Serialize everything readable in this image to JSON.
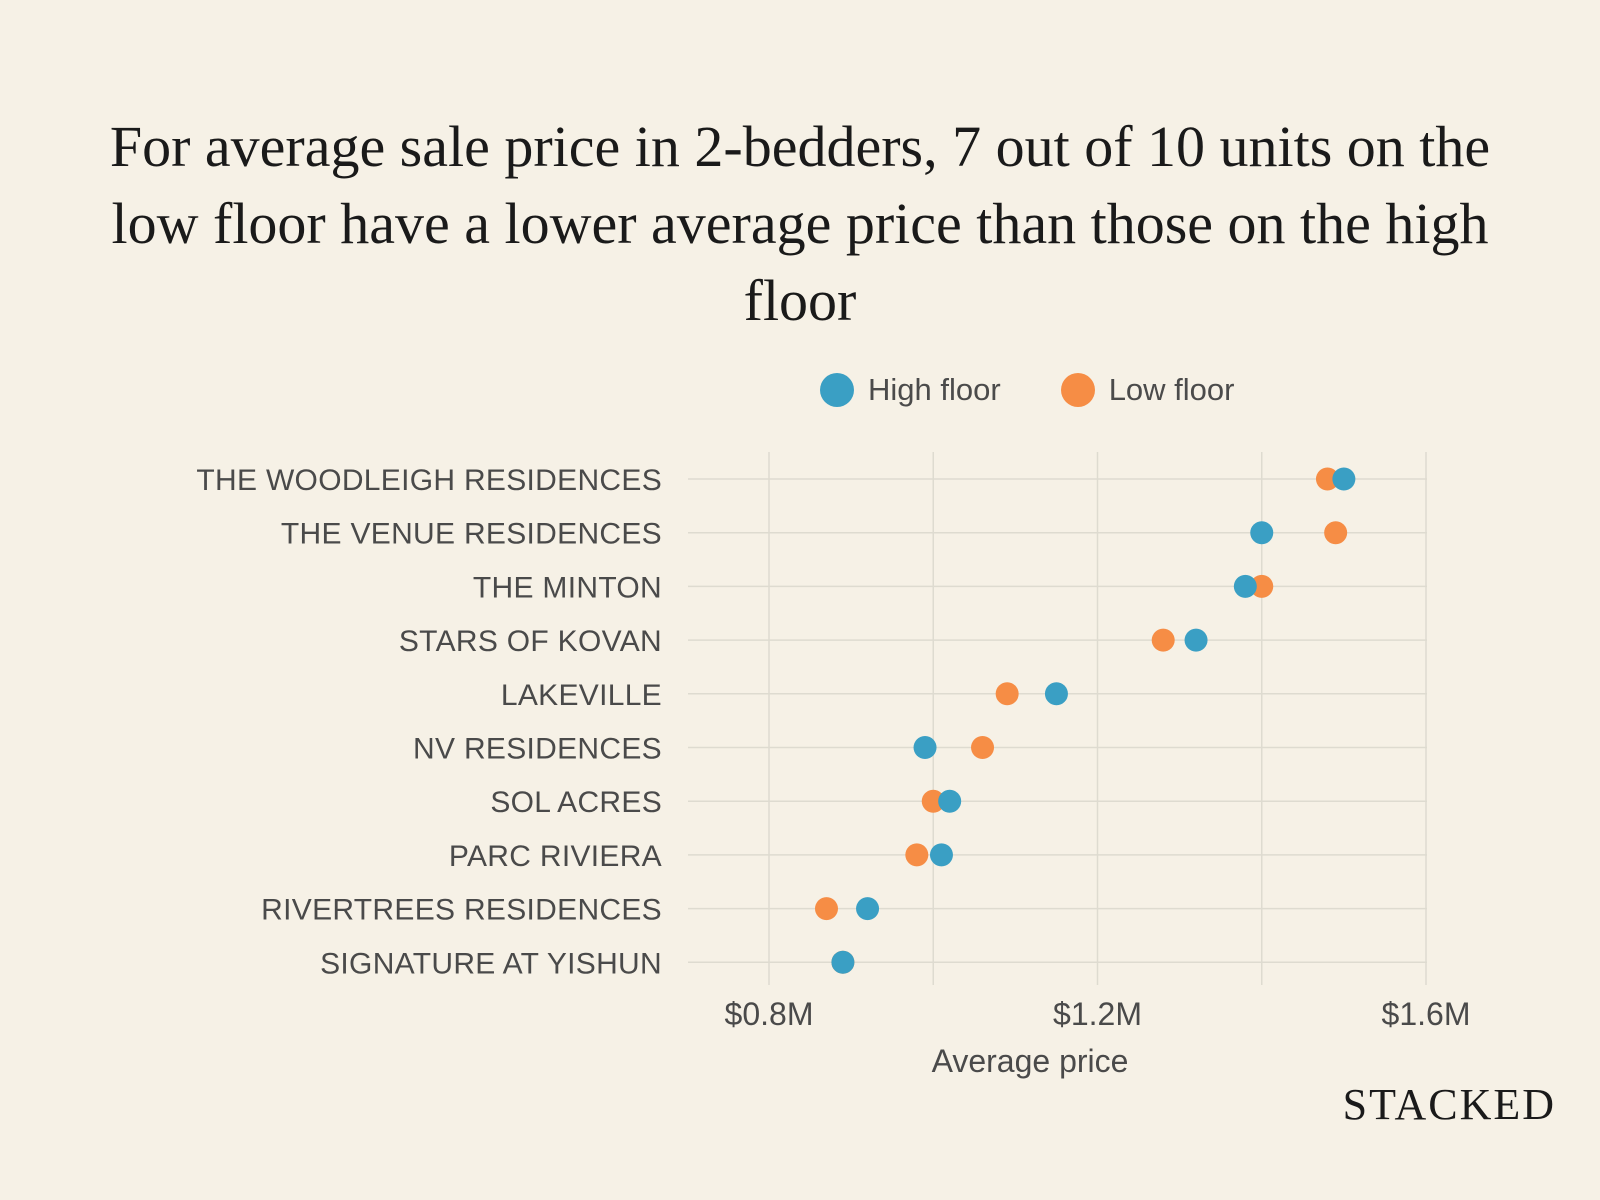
{
  "title": "For average sale price in 2-bedders, 7 out of 10 units on the low floor have a lower average price than those on the high floor",
  "brand": "STACKED",
  "colors": {
    "background": "#f6f1e6",
    "high": "#3a9fc4",
    "low": "#f68d45",
    "grid": "#dedbd0"
  },
  "legend": {
    "high_label": "High floor",
    "low_label": "Low floor"
  },
  "chart_data": {
    "type": "scatter",
    "title": "For average sale price in 2-bedders, 7 out of 10 units on the low floor have a lower average price than those on the high floor",
    "xlabel": "Average price",
    "ylabel": "",
    "xlim": [
      0.7,
      1.6
    ],
    "xticks": [
      0.8,
      1.2,
      1.6
    ],
    "xtick_labels": [
      "$0.8M",
      "$1.2M",
      "$1.6M"
    ],
    "minor_gridlines": [
      1.0,
      1.4
    ],
    "grid": true,
    "legend": "top-right",
    "categories": [
      "THE WOODLEIGH RESIDENCES",
      "THE VENUE RESIDENCES",
      "THE MINTON",
      "STARS OF KOVAN",
      "LAKEVILLE",
      "NV RESIDENCES",
      "SOL ACRES",
      "PARC RIVIERA",
      "RIVERTREES RESIDENCES",
      "SIGNATURE AT YISHUN"
    ],
    "series": [
      {
        "name": "High floor",
        "values": [
          1.5,
          1.4,
          1.38,
          1.32,
          1.15,
          0.99,
          1.02,
          1.01,
          0.92,
          0.89
        ]
      },
      {
        "name": "Low floor",
        "values": [
          1.48,
          1.49,
          1.4,
          1.28,
          1.09,
          1.06,
          1.0,
          0.98,
          0.87,
          0.89
        ]
      }
    ]
  }
}
